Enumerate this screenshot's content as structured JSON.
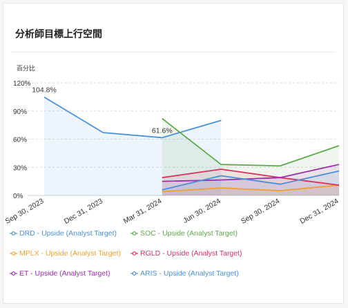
{
  "card": {
    "title": "分析師目標上行空間"
  },
  "chart_data": {
    "type": "line",
    "ylabel": "百分比",
    "ylim": [
      0,
      120
    ],
    "yticks": [
      "0%",
      "30%",
      "60%",
      "90%",
      "120%"
    ],
    "ytick_values": [
      0,
      30,
      60,
      90,
      120
    ],
    "x": [
      "2023-09-30",
      "2023-12-31",
      "2024-03-31",
      "2024-06-30",
      "2024-09-30",
      "2024-12-31"
    ],
    "xtick_labels": [
      "Sep 30, 2023",
      "Dec 31, 2023",
      "Mar 31, 2024",
      "Jun 30, 2024",
      "Sep 30, 2024",
      "Dec 31, 2024"
    ],
    "grid": "horizontal dashed",
    "legend_position": "bottom",
    "series": [
      {
        "name": "DRD - Upside (Analyst Target)",
        "color": "#4a90d9",
        "points": [
          [
            "2023-09-30",
            104.8
          ],
          [
            "2023-12-31",
            67
          ],
          [
            "2024-03-31",
            61.6
          ],
          [
            "2024-06-30",
            80
          ]
        ]
      },
      {
        "name": "SOC - Upside (Analyst Target)",
        "color": "#5fa84e",
        "points": [
          [
            "2024-03-31",
            82
          ],
          [
            "2024-06-30",
            33
          ],
          [
            "2024-09-30",
            31.5
          ],
          [
            "2024-12-31",
            53
          ]
        ]
      },
      {
        "name": "MPLX - Upside (Analyst Target)",
        "color": "#f0a030",
        "points": [
          [
            "2024-03-31",
            4
          ],
          [
            "2024-06-30",
            8
          ],
          [
            "2024-09-30",
            5
          ],
          [
            "2024-12-31",
            11
          ]
        ]
      },
      {
        "name": "RGLD - Upside (Analyst Target)",
        "color": "#d8345f",
        "points": [
          [
            "2024-03-31",
            19
          ],
          [
            "2024-06-30",
            28
          ],
          [
            "2024-09-30",
            19
          ],
          [
            "2024-12-31",
            11
          ]
        ]
      },
      {
        "name": "ET - Upside (Analyst Target)",
        "color": "#9b2fae",
        "points": [
          [
            "2024-03-31",
            15
          ],
          [
            "2024-06-30",
            16.5
          ],
          [
            "2024-09-30",
            19
          ],
          [
            "2024-12-31",
            33
          ]
        ]
      },
      {
        "name": "ARIS - Upside (Analyst Target)",
        "color": "#4a90d9",
        "points": [
          [
            "2024-03-31",
            6
          ],
          [
            "2024-06-30",
            21
          ],
          [
            "2024-09-30",
            12
          ],
          [
            "2024-12-31",
            26
          ]
        ]
      }
    ],
    "annotations": [
      {
        "series": "DRD - Upside (Analyst Target)",
        "x": "2023-09-30",
        "y": 104.8,
        "text": "104.8%"
      },
      {
        "series": "DRD - Upside (Analyst Target)",
        "x": "2024-03-31",
        "y": 61.6,
        "text": "61.6%"
      }
    ]
  }
}
